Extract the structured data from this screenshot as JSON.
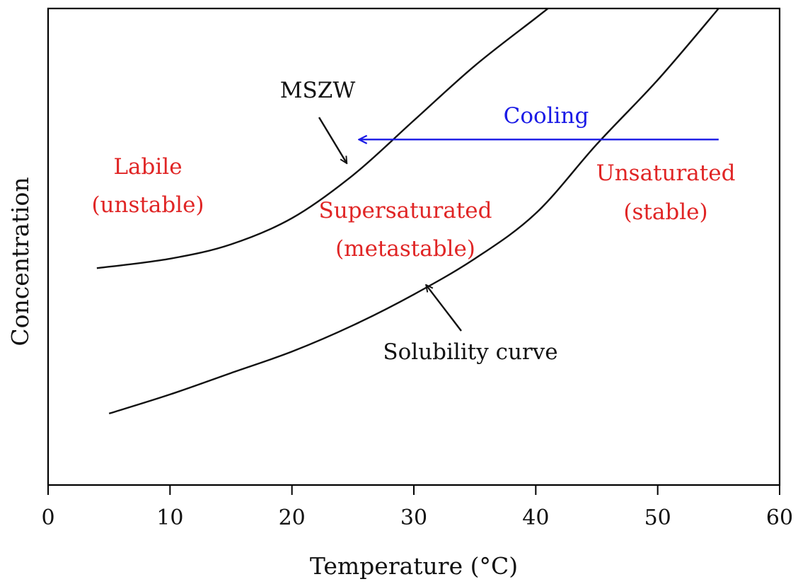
{
  "chart_data": {
    "type": "line",
    "xlabel": "Temperature (°C)",
    "ylabel": "Concentration",
    "xlim": [
      0,
      60
    ],
    "ylim": [
      0,
      100
    ],
    "xticks": [
      0,
      10,
      20,
      30,
      40,
      50,
      60
    ],
    "yticks_labeled": false,
    "grid": false,
    "series": [
      {
        "key": "mszw",
        "x": [
          4,
          10,
          15,
          20,
          25,
          30,
          35,
          40,
          41
        ],
        "y": [
          45.5,
          47.5,
          50.5,
          56,
          65,
          76.5,
          88,
          98,
          100
        ],
        "color": "#111111"
      },
      {
        "key": "solubility",
        "x": [
          5,
          10,
          15,
          20,
          25,
          30,
          35,
          40,
          45,
          50,
          55
        ],
        "y": [
          15,
          19,
          23.5,
          28,
          33.5,
          40,
          47.5,
          57,
          71.5,
          85,
          100
        ],
        "color": "#111111"
      }
    ],
    "annotations": [
      {
        "key": "mszw_label",
        "text": "MSZW",
        "color": "#111111",
        "arrow_to": [
          24.5,
          67.5
        ]
      },
      {
        "key": "solubility_label",
        "text": "Solubility curve",
        "color": "#111111",
        "arrow_to": [
          31,
          42
        ]
      },
      {
        "key": "cooling",
        "text": "Cooling",
        "color": "#1a1ae6",
        "arrow_from": [
          55,
          72.5
        ],
        "arrow_to": [
          25.5,
          72.5
        ]
      }
    ],
    "regions": [
      {
        "key": "labile",
        "lines": [
          "Labile",
          "(unstable)"
        ],
        "color": "#e02525"
      },
      {
        "key": "supersaturated",
        "lines": [
          "Supersaturated",
          "(metastable)"
        ],
        "color": "#e02525"
      },
      {
        "key": "unsaturated",
        "lines": [
          "Unsaturated",
          "(stable)"
        ],
        "color": "#e02525"
      }
    ]
  }
}
